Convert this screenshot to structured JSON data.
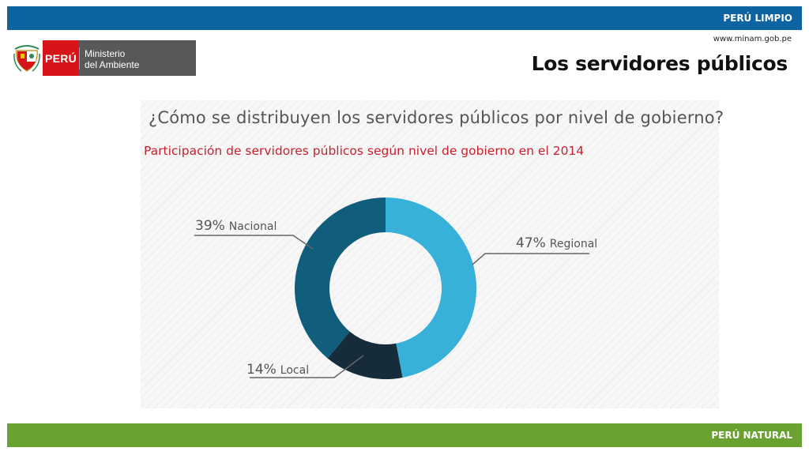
{
  "header": {
    "band_text": "PERÚ LIMPIO",
    "url": "www.minam.gob.pe",
    "title": "Los servidores públicos"
  },
  "logo": {
    "country": "PERÚ",
    "line1": "Ministerio",
    "line2": "del Ambiente"
  },
  "footer": {
    "band_text": "PERÚ NATURAL"
  },
  "colors": {
    "top_band": "#0e63a1",
    "bottom_band": "#6aa232",
    "logo_red": "#d7141a",
    "logo_gray": "#58585a",
    "subtitle_red": "#c8202f"
  },
  "chart_data": {
    "type": "pie",
    "variant": "donut",
    "title": "¿Cómo se distribuyen los servidores públicos por nivel de gobierno?",
    "subtitle": "Participación de servidores públicos según nivel de gobierno en el 2014",
    "slices": [
      {
        "label": "Regional",
        "value": 47,
        "display": "47%",
        "color": "#37b0da"
      },
      {
        "label": "Local",
        "value": 14,
        "display": "14%",
        "color": "#172c3a"
      },
      {
        "label": "Nacional",
        "value": 39,
        "display": "39%",
        "color": "#105d7c"
      }
    ]
  }
}
